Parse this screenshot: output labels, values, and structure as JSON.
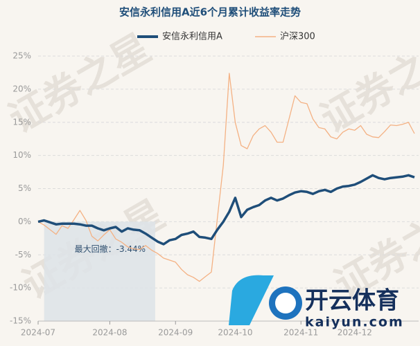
{
  "chart_data": {
    "type": "line",
    "title": "安信永利信用A近6个月累计收益率走势",
    "categories": [
      "2024-07",
      null,
      null,
      null,
      null,
      null,
      null,
      null,
      null,
      null,
      null,
      null,
      "2024-08",
      null,
      null,
      null,
      null,
      null,
      null,
      null,
      null,
      null,
      null,
      "2024-09",
      null,
      null,
      null,
      null,
      null,
      null,
      null,
      null,
      null,
      "2024-10",
      null,
      null,
      null,
      null,
      null,
      null,
      null,
      null,
      null,
      null,
      "2024-11",
      null,
      null,
      null,
      null,
      null,
      null,
      null,
      null,
      "2024-12",
      null,
      null,
      null,
      null,
      null,
      null,
      null,
      null,
      null,
      null
    ],
    "series": [
      {
        "name": "安信永利信用A",
        "color": "#1f4e79",
        "values": [
          0.0,
          0.2,
          -0.1,
          -0.4,
          -0.3,
          -0.3,
          -0.3,
          -0.4,
          -0.6,
          -0.6,
          -1.0,
          -1.3,
          -1.0,
          -0.8,
          -1.5,
          -1.0,
          -1.2,
          -1.3,
          -1.8,
          -2.4,
          -3.0,
          -3.4,
          -2.8,
          -2.6,
          -2.0,
          -1.8,
          -1.5,
          -2.3,
          -2.4,
          -2.6,
          -1.2,
          0.0,
          1.5,
          3.6,
          0.7,
          1.8,
          2.2,
          2.5,
          3.2,
          3.6,
          3.2,
          3.5,
          4.0,
          4.4,
          4.6,
          4.5,
          4.2,
          4.6,
          4.8,
          4.5,
          5.0,
          5.3,
          5.4,
          5.6,
          6.0,
          6.5,
          7.0,
          6.6,
          6.4,
          6.6,
          6.7,
          6.8,
          7.0,
          6.7
        ]
      },
      {
        "name": "沪深300",
        "color": "#f4b183",
        "values": [
          0.0,
          -0.5,
          -1.2,
          -1.9,
          -0.6,
          -1.0,
          0.3,
          1.7,
          0.2,
          -2.2,
          -2.9,
          -2.0,
          -1.2,
          -2.6,
          -3.1,
          -3.8,
          -4.1,
          -4.2,
          -3.6,
          -4.3,
          -4.8,
          -5.5,
          -5.8,
          -6.1,
          -7.2,
          -8.0,
          -8.4,
          -9.0,
          -8.3,
          -7.6,
          0.5,
          8.5,
          22.4,
          15.0,
          11.5,
          11.0,
          13.0,
          14.0,
          14.5,
          13.5,
          12.0,
          12.0,
          15.5,
          19.0,
          18.0,
          17.8,
          15.5,
          14.2,
          14.0,
          12.8,
          12.5,
          13.5,
          14.0,
          13.8,
          14.5,
          13.2,
          12.8,
          12.7,
          13.6,
          14.6,
          14.5,
          14.7,
          15.0,
          13.3
        ]
      }
    ],
    "ylim": [
      -15,
      25
    ],
    "yticks": [
      {
        "value": -15,
        "label": "-15%"
      },
      {
        "value": -10,
        "label": "-10%"
      },
      {
        "value": -5,
        "label": "-5%"
      },
      {
        "value": 0,
        "label": "0%"
      },
      {
        "value": 5,
        "label": "5%"
      },
      {
        "value": 10,
        "label": "10%"
      },
      {
        "value": 15,
        "label": "15%"
      },
      {
        "value": 20,
        "label": "20%"
      },
      {
        "value": 25,
        "label": "25%"
      }
    ],
    "grid": true,
    "legend": "top",
    "max_drawdown": {
      "text": "最大回撤：-3.44%",
      "from_index": 1,
      "to_index": 19.6
    },
    "watermark": "证券之星",
    "logo": {
      "name": "开云体育",
      "site": "kaiyun.com"
    }
  }
}
